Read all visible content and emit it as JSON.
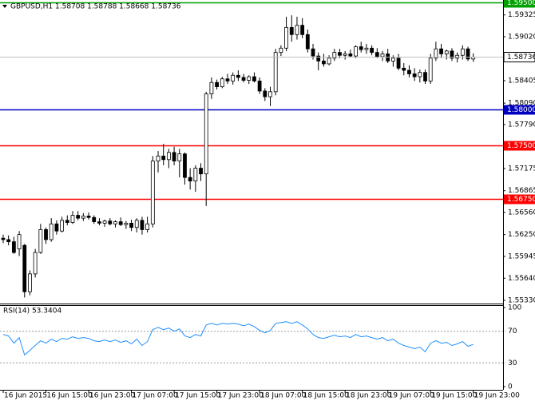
{
  "header": {
    "symbol_line": "GBPUSD,H1 1.58708 1.58788 1.58668 1.58736"
  },
  "chart_data": [
    {
      "type": "candlestick",
      "categories": [
        "16 Jun 2015",
        null,
        null,
        null,
        null,
        null,
        null,
        null,
        "16 Jun 15:00",
        null,
        null,
        null,
        null,
        null,
        null,
        null,
        "16 Jun 23:00",
        null,
        null,
        null,
        null,
        null,
        null,
        null,
        "17 Jun 07:00",
        null,
        null,
        null,
        null,
        null,
        null,
        null,
        "17 Jun 15:00",
        null,
        null,
        null,
        null,
        null,
        null,
        null,
        "17 Jun 23:00",
        null,
        null,
        null,
        null,
        null,
        null,
        null,
        "18 Jun 07:00",
        null,
        null,
        null,
        null,
        null,
        null,
        null,
        "18 Jun 15:00",
        null,
        null,
        null,
        null,
        null,
        null,
        null,
        "18 Jun 23:00",
        null,
        null,
        null,
        null,
        null,
        null,
        null,
        "19 Jun 07:00",
        null,
        null,
        null,
        null,
        null,
        null,
        null,
        "19 Jun 15:00",
        null,
        null,
        null,
        null,
        null,
        null,
        null,
        "19 Jun 23:00"
      ],
      "open": [
        1.562,
        1.5618,
        1.5615,
        1.5605,
        1.561,
        1.5545,
        1.557,
        1.56,
        1.5632,
        1.5618,
        1.564,
        1.563,
        1.5645,
        1.5642,
        1.5652,
        1.5648,
        1.5651,
        1.5649,
        1.5643,
        1.5641,
        1.5644,
        1.564,
        1.5643,
        1.5639,
        1.5641,
        1.5635,
        1.5645,
        1.5632,
        1.564,
        1.5728,
        1.5735,
        1.573,
        1.574,
        1.5728,
        1.5738,
        1.5705,
        1.57,
        1.5718,
        1.571,
        1.5822,
        1.5838,
        1.5832,
        1.5843,
        1.584,
        1.5848,
        1.5845,
        1.5841,
        1.5846,
        1.584,
        1.5826,
        1.5818,
        1.5825,
        1.588,
        1.5886,
        1.5915,
        1.5905,
        1.5918,
        1.5905,
        1.5885,
        1.5875,
        1.5868,
        1.5864,
        1.5872,
        1.588,
        1.5876,
        1.5878,
        1.5875,
        1.5888,
        1.5884,
        1.5886,
        1.588,
        1.5874,
        1.5878,
        1.5868,
        1.5872,
        1.5858,
        1.5855,
        1.585,
        1.5846,
        1.5852,
        1.584,
        1.5872,
        1.5885,
        1.5878,
        1.5882,
        1.5872,
        1.5876,
        1.5885,
        1.58708
      ],
      "high": [
        1.5625,
        1.5624,
        1.5622,
        1.563,
        1.5612,
        1.5575,
        1.5605,
        1.564,
        1.5635,
        1.5648,
        1.5645,
        1.565,
        1.5652,
        1.5658,
        1.5658,
        1.5655,
        1.5656,
        1.5652,
        1.5648,
        1.5646,
        1.5648,
        1.5645,
        1.5649,
        1.5644,
        1.5646,
        1.5648,
        1.565,
        1.565,
        1.5735,
        1.5742,
        1.5752,
        1.5745,
        1.5748,
        1.5745,
        1.574,
        1.5718,
        1.5722,
        1.5725,
        1.5825,
        1.5845,
        1.5842,
        1.5846,
        1.585,
        1.5852,
        1.5855,
        1.585,
        1.5848,
        1.5852,
        1.5845,
        1.583,
        1.5832,
        1.5885,
        1.589,
        1.593,
        1.5932,
        1.593,
        1.5928,
        1.5912,
        1.5892,
        1.588,
        1.5878,
        1.5876,
        1.5885,
        1.5885,
        1.5882,
        1.5884,
        1.589,
        1.5895,
        1.5892,
        1.589,
        1.5886,
        1.5882,
        1.5885,
        1.5876,
        1.5878,
        1.5865,
        1.5862,
        1.5858,
        1.5856,
        1.5856,
        1.5878,
        1.5895,
        1.5892,
        1.5884,
        1.5886,
        1.588,
        1.589,
        1.5888,
        1.58788
      ],
      "low": [
        1.5613,
        1.561,
        1.5598,
        1.5595,
        1.5537,
        1.554,
        1.5565,
        1.5598,
        1.5612,
        1.5615,
        1.5625,
        1.5628,
        1.5638,
        1.564,
        1.5645,
        1.5644,
        1.5646,
        1.564,
        1.5638,
        1.5636,
        1.5638,
        1.5635,
        1.5637,
        1.5633,
        1.563,
        1.5628,
        1.5625,
        1.5628,
        1.5635,
        1.5712,
        1.5722,
        1.5718,
        1.5722,
        1.5705,
        1.5695,
        1.5688,
        1.5685,
        1.57,
        1.5665,
        1.5815,
        1.5828,
        1.583,
        1.5836,
        1.5835,
        1.584,
        1.5838,
        1.5836,
        1.5838,
        1.5822,
        1.5812,
        1.5805,
        1.582,
        1.5875,
        1.5882,
        1.5895,
        1.5898,
        1.59,
        1.588,
        1.587,
        1.5855,
        1.586,
        1.5862,
        1.5868,
        1.5872,
        1.587,
        1.5873,
        1.5872,
        1.588,
        1.5878,
        1.5876,
        1.5872,
        1.5868,
        1.5865,
        1.586,
        1.5855,
        1.5848,
        1.5845,
        1.584,
        1.5838,
        1.5836,
        1.5836,
        1.5868,
        1.5872,
        1.587,
        1.5868,
        1.5866,
        1.587,
        1.5868,
        1.58668
      ],
      "close": [
        1.5618,
        1.5615,
        1.56,
        1.5625,
        1.5545,
        1.557,
        1.56,
        1.5632,
        1.5618,
        1.564,
        1.563,
        1.5645,
        1.5642,
        1.5652,
        1.5648,
        1.5651,
        1.5649,
        1.5643,
        1.5641,
        1.5644,
        1.564,
        1.5643,
        1.5639,
        1.5641,
        1.5635,
        1.5645,
        1.5632,
        1.564,
        1.5728,
        1.5735,
        1.573,
        1.574,
        1.5728,
        1.5738,
        1.5705,
        1.57,
        1.5718,
        1.571,
        1.5822,
        1.5838,
        1.5832,
        1.5843,
        1.584,
        1.5848,
        1.5845,
        1.5841,
        1.5846,
        1.584,
        1.5826,
        1.5818,
        1.5825,
        1.588,
        1.5886,
        1.5915,
        1.5905,
        1.5918,
        1.5905,
        1.5885,
        1.5875,
        1.5868,
        1.5864,
        1.5872,
        1.588,
        1.5876,
        1.5878,
        1.5875,
        1.5888,
        1.5884,
        1.5886,
        1.588,
        1.5874,
        1.5878,
        1.5868,
        1.5872,
        1.5858,
        1.5855,
        1.585,
        1.5846,
        1.5852,
        1.584,
        1.5872,
        1.5885,
        1.5878,
        1.5882,
        1.5872,
        1.5876,
        1.5885,
        1.58708,
        1.58736
      ],
      "ylim": [
        1.55285,
        1.59534
      ],
      "yticks": [
        1.59325,
        {
          "value": 1.5902,
          "label": "1.59020"
        },
        1.58405,
        {
          "value": 1.5809,
          "label": "1.58090"
        },
        {
          "value": 1.5779,
          "label": "1.57790"
        },
        1.57175,
        1.56865,
        {
          "value": 1.5656,
          "label": "1.56560"
        },
        {
          "value": 1.5625,
          "label": "1.56250"
        },
        1.55945,
        {
          "value": 1.5564,
          "label": "1.55640"
        },
        {
          "value": 1.5533,
          "label": "1.55330"
        }
      ],
      "hlines": [
        {
          "value": 1.595,
          "label": "1.59500",
          "color": "#00a000"
        },
        {
          "value": 1.58,
          "label": "1.58000",
          "color": "#0000c0"
        },
        {
          "value": 1.575,
          "label": "1.57500",
          "color": "#ff0000"
        },
        {
          "value": 1.5675,
          "label": "1.56750",
          "color": "#ff0000"
        }
      ],
      "current": {
        "value": 1.58736,
        "label": "1.58736"
      }
    },
    {
      "type": "line",
      "title": "RSI(14) 53.3404",
      "color": "#1e90ff",
      "values": [
        66,
        64,
        55,
        62,
        40,
        46,
        52,
        58,
        55,
        60,
        57,
        61,
        60,
        63,
        61,
        62,
        61,
        58,
        57,
        59,
        57,
        59,
        56,
        58,
        54,
        60,
        52,
        57,
        72,
        75,
        72,
        74,
        70,
        73,
        64,
        62,
        66,
        64,
        78,
        80,
        78,
        80,
        79,
        80,
        79,
        77,
        79,
        76,
        71,
        68,
        71,
        80,
        81,
        82,
        80,
        82,
        78,
        73,
        66,
        62,
        61,
        63,
        65,
        63,
        64,
        62,
        66,
        63,
        64,
        62,
        60,
        62,
        58,
        60,
        55,
        52,
        50,
        48,
        50,
        44,
        55,
        58,
        55,
        56,
        52,
        54,
        57,
        51,
        53.3404
      ],
      "ylim": [
        0,
        100
      ],
      "yticks": [
        0,
        30,
        70,
        100
      ]
    }
  ]
}
